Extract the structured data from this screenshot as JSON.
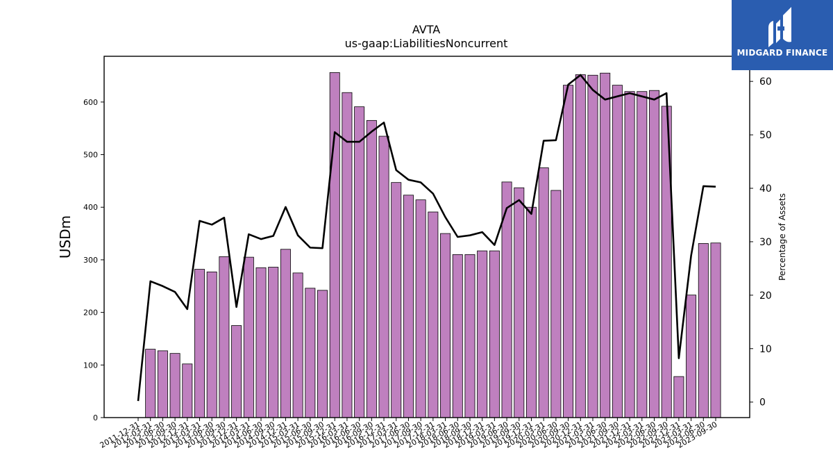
{
  "chart_data": {
    "type": "bar",
    "title": "AVTA",
    "subtitle": "us-gaap:LiabilitiesNoncurrent",
    "ylabel": "USDm",
    "y2label": "Percentage of Assets",
    "ylim": [
      0,
      687
    ],
    "y2lim": [
      -2.9,
      64.7
    ],
    "yticks": [
      0,
      100,
      200,
      300,
      400,
      500,
      600
    ],
    "y2ticks": [
      0,
      10,
      20,
      30,
      40,
      50,
      60
    ],
    "bar_color": "#bf80bf",
    "line_color": "#000000",
    "categories": [
      "2011-12-31",
      "2012-03-31",
      "2012-06-30",
      "2012-09-30",
      "2012-12-31",
      "2013-03-31",
      "2013-06-30",
      "2013-09-30",
      "2013-12-31",
      "2014-03-31",
      "2014-06-30",
      "2014-09-30",
      "2014-12-31",
      "2015-03-31",
      "2015-06-30",
      "2015-09-30",
      "2015-12-31",
      "2016-03-31",
      "2016-06-30",
      "2016-09-30",
      "2016-12-31",
      "2017-03-31",
      "2017-06-30",
      "2017-09-30",
      "2017-12-31",
      "2018-03-31",
      "2018-06-30",
      "2018-09-30",
      "2018-12-31",
      "2019-03-31",
      "2019-06-30",
      "2019-09-30",
      "2019-12-31",
      "2020-03-31",
      "2020-06-30",
      "2020-09-30",
      "2020-12-31",
      "2021-03-31",
      "2021-06-30",
      "2021-09-30",
      "2021-12-31",
      "2022-03-31",
      "2022-06-30",
      "2022-09-30",
      "2022-12-31",
      "2023-03-31",
      "2023-06-30",
      "2023-09-30"
    ],
    "series": [
      {
        "kind": "bar",
        "values": [
          null,
          130,
          127,
          122,
          102,
          282,
          277,
          306,
          175,
          305,
          285,
          286,
          320,
          275,
          246,
          242,
          656,
          618,
          591,
          565,
          535,
          447,
          423,
          414,
          391,
          350,
          310,
          310,
          317,
          317,
          448,
          437,
          400,
          475,
          432,
          632,
          652,
          651,
          655,
          632,
          620,
          620,
          622,
          592,
          78,
          233,
          331,
          332
        ]
      },
      {
        "kind": "line",
        "axis": "right",
        "values": [
          0.2,
          22.6,
          21.7,
          20.6,
          17.4,
          33.9,
          33.2,
          34.5,
          17.8,
          31.4,
          30.5,
          31.1,
          36.5,
          31.2,
          28.9,
          28.8,
          50.5,
          48.7,
          48.7,
          50.6,
          52.3,
          43.4,
          41.6,
          41.1,
          39.0,
          34.6,
          30.9,
          31.2,
          31.8,
          29.4,
          36.3,
          37.8,
          35.2,
          48.9,
          49.0,
          59.4,
          61.2,
          58.4,
          56.6,
          57.2,
          57.8,
          57.2,
          56.6,
          57.8,
          8.2,
          27.4,
          40.4,
          40.3
        ]
      }
    ]
  },
  "logo": {
    "text": "MIDGARD FINANCE",
    "bg": "#2a5db0"
  }
}
